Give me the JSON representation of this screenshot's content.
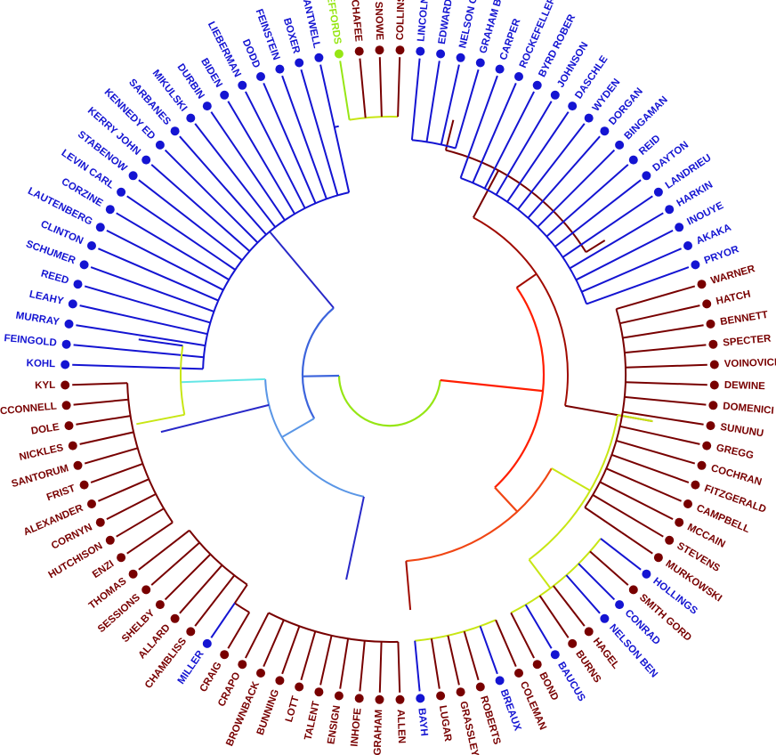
{
  "leaves": [
    {
      "label": "KOHL",
      "group": "D"
    },
    {
      "label": "FEINGOLD",
      "group": "D"
    },
    {
      "label": "MURRAY",
      "group": "D"
    },
    {
      "label": "LEAHY",
      "group": "D"
    },
    {
      "label": "REED",
      "group": "D"
    },
    {
      "label": "SCHUMER",
      "group": "D"
    },
    {
      "label": "CLINTON",
      "group": "D"
    },
    {
      "label": "LAUTENBERG",
      "group": "D"
    },
    {
      "label": "CORZINE",
      "group": "D"
    },
    {
      "label": "LEVIN CARL",
      "group": "D"
    },
    {
      "label": "STABENOW",
      "group": "D"
    },
    {
      "label": "KERRY JOHN",
      "group": "D"
    },
    {
      "label": "KENNEDY ED",
      "group": "D"
    },
    {
      "label": "SARBANES",
      "group": "D"
    },
    {
      "label": "MIKULSKI",
      "group": "D"
    },
    {
      "label": "DURBIN",
      "group": "D"
    },
    {
      "label": "BIDEN",
      "group": "D"
    },
    {
      "label": "LIEBERMAN",
      "group": "D"
    },
    {
      "label": "DODD",
      "group": "D"
    },
    {
      "label": "FEINSTEIN",
      "group": "D"
    },
    {
      "label": "BOXER",
      "group": "D"
    },
    {
      "label": "CANTWELL",
      "group": "D"
    },
    {
      "label": "JEFFORDS",
      "group": "I"
    },
    {
      "label": "CHAFEE",
      "group": "R"
    },
    {
      "label": "SNOWE",
      "group": "R"
    },
    {
      "label": "COLLINS",
      "group": "R"
    },
    {
      "label": "LINCOLN",
      "group": "D"
    },
    {
      "label": "EDWARDS",
      "group": "D"
    },
    {
      "label": "NELSON CLA",
      "group": "D"
    },
    {
      "label": "GRAHAM BOB",
      "group": "D"
    },
    {
      "label": "CARPER",
      "group": "D"
    },
    {
      "label": "ROCKEFELLER",
      "group": "D"
    },
    {
      "label": "BYRD ROBER",
      "group": "D"
    },
    {
      "label": "JOHNSON",
      "group": "D"
    },
    {
      "label": "DASCHLE",
      "group": "D"
    },
    {
      "label": "WYDEN",
      "group": "D"
    },
    {
      "label": "DORGAN",
      "group": "D"
    },
    {
      "label": "BINGAMAN",
      "group": "D"
    },
    {
      "label": "REID",
      "group": "D"
    },
    {
      "label": "DAYTON",
      "group": "D"
    },
    {
      "label": "LANDRIEU",
      "group": "D"
    },
    {
      "label": "HARKIN",
      "group": "D"
    },
    {
      "label": "INOUYE",
      "group": "D"
    },
    {
      "label": "AKAKA",
      "group": "D"
    },
    {
      "label": "PRYOR",
      "group": "D"
    },
    {
      "label": "WARNER",
      "group": "R"
    },
    {
      "label": "HATCH",
      "group": "R"
    },
    {
      "label": "BENNETT",
      "group": "R"
    },
    {
      "label": "SPECTER",
      "group": "R"
    },
    {
      "label": "VOINOVICH",
      "group": "R"
    },
    {
      "label": "DEWINE",
      "group": "R"
    },
    {
      "label": "DOMENICI",
      "group": "R"
    },
    {
      "label": "SUNUNU",
      "group": "R"
    },
    {
      "label": "GREGG",
      "group": "R"
    },
    {
      "label": "COCHRAN",
      "group": "R"
    },
    {
      "label": "FITZGERALD",
      "group": "R"
    },
    {
      "label": "CAMPBELL",
      "group": "R"
    },
    {
      "label": "MCCAIN",
      "group": "R"
    },
    {
      "label": "STEVENS",
      "group": "R"
    },
    {
      "label": "MURKOWSKI",
      "group": "R"
    },
    {
      "label": "HOLLINGS",
      "group": "D"
    },
    {
      "label": "SMITH GORD",
      "group": "R"
    },
    {
      "label": "CONRAD",
      "group": "D"
    },
    {
      "label": "NELSON BEN",
      "group": "D"
    },
    {
      "label": "HAGEL",
      "group": "R"
    },
    {
      "label": "BURNS",
      "group": "R"
    },
    {
      "label": "BAUCUS",
      "group": "D"
    },
    {
      "label": "BOND",
      "group": "R"
    },
    {
      "label": "COLEMAN",
      "group": "R"
    },
    {
      "label": "BREAUX",
      "group": "D"
    },
    {
      "label": "ROBERTS",
      "group": "R"
    },
    {
      "label": "GRASSLEY",
      "group": "R"
    },
    {
      "label": "LUGAR",
      "group": "R"
    },
    {
      "label": "BAYH",
      "group": "D"
    },
    {
      "label": "ALLEN",
      "group": "R"
    },
    {
      "label": "GRAHAM",
      "group": "R"
    },
    {
      "label": "INHOFE",
      "group": "R"
    },
    {
      "label": "ENSIGN",
      "group": "R"
    },
    {
      "label": "TALENT",
      "group": "R"
    },
    {
      "label": "LOTT",
      "group": "R"
    },
    {
      "label": "BUNNING",
      "group": "R"
    },
    {
      "label": "BROWNBACK",
      "group": "R"
    },
    {
      "label": "CRAPO",
      "group": "R"
    },
    {
      "label": "CRAIG",
      "group": "R"
    },
    {
      "label": "MILLER",
      "group": "D"
    },
    {
      "label": "CHAMBLISS",
      "group": "R"
    },
    {
      "label": "ALLARD",
      "group": "R"
    },
    {
      "label": "SHELBY",
      "group": "R"
    },
    {
      "label": "SESSIONS",
      "group": "R"
    },
    {
      "label": "THOMAS",
      "group": "R"
    },
    {
      "label": "ENZI",
      "group": "R"
    },
    {
      "label": "HUTCHISON",
      "group": "R"
    },
    {
      "label": "CORNYN",
      "group": "R"
    },
    {
      "label": "ALEXANDER",
      "group": "R"
    },
    {
      "label": "FRIST",
      "group": "R"
    },
    {
      "label": "SANTORUM",
      "group": "R"
    },
    {
      "label": "NICKLES",
      "group": "R"
    },
    {
      "label": "DOLE",
      "group": "R"
    },
    {
      "label": "MCCONNELL",
      "group": "R"
    },
    {
      "label": "KYL",
      "group": "R"
    }
  ],
  "colors": {
    "D": "#1414d2",
    "R": "#780000",
    "I": "#96e614",
    "root_arc": "#96e614",
    "red_arc": "#ff1e00",
    "orange_arc": "#f04614",
    "dark_red_arc": "#a00a00",
    "yellow_green": "#c8e614",
    "blue_mid": "#3c64dc",
    "blue_light": "#5a96e6",
    "cyan": "#64e6e6",
    "blue_big": "#2828c8"
  }
}
